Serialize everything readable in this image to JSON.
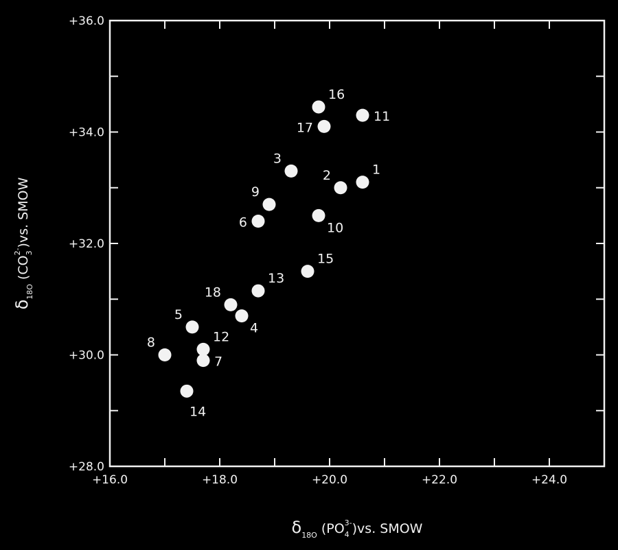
{
  "chart_data": {
    "type": "scatter",
    "title": "",
    "xlim": [
      16.0,
      25.0
    ],
    "ylim": [
      28.0,
      36.0
    ],
    "x_ticks": [
      16.0,
      17.0,
      18.0,
      19.0,
      20.0,
      21.0,
      22.0,
      23.0,
      24.0,
      25.0
    ],
    "y_ticks": [
      28.0,
      29.0,
      30.0,
      31.0,
      32.0,
      33.0,
      34.0,
      35.0,
      36.0
    ],
    "x_tick_labels": [
      "+16.0",
      "",
      "+18.0",
      "",
      "+20.0",
      "",
      "+22.0",
      "",
      "+24.0",
      ""
    ],
    "y_tick_labels": [
      "+28.0",
      "",
      "+30.0",
      "",
      "+32.0",
      "",
      "+34.0",
      "",
      "+36.0"
    ],
    "xlabel": {
      "symbol": "δ",
      "symbol_sub": "18O",
      "species": "(PO",
      "species_sub": "4",
      "species_sup": "3-",
      "suffix": ")vs. SMOW"
    },
    "ylabel": {
      "symbol": "δ",
      "symbol_sub": "18O",
      "species": "(CO",
      "species_sub": "3",
      "species_sup": "2-",
      "suffix": ")vs. SMOW"
    },
    "grid": false,
    "points": [
      {
        "label": "1",
        "x": 20.6,
        "y": 33.1,
        "label_pos": "upper-right"
      },
      {
        "label": "2",
        "x": 20.2,
        "y": 33.0,
        "label_pos": "upper-left"
      },
      {
        "label": "3",
        "x": 19.3,
        "y": 33.3,
        "label_pos": "upper-left"
      },
      {
        "label": "4",
        "x": 18.4,
        "y": 30.7,
        "label_pos": "lower-right"
      },
      {
        "label": "5",
        "x": 17.5,
        "y": 30.5,
        "label_pos": "upper-left"
      },
      {
        "label": "6",
        "x": 18.7,
        "y": 32.4,
        "label_pos": "left"
      },
      {
        "label": "7",
        "x": 17.7,
        "y": 29.9,
        "label_pos": "right"
      },
      {
        "label": "8",
        "x": 17.0,
        "y": 30.0,
        "label_pos": "upper-left"
      },
      {
        "label": "9",
        "x": 18.9,
        "y": 32.7,
        "label_pos": "upper-left"
      },
      {
        "label": "10",
        "x": 19.8,
        "y": 32.5,
        "label_pos": "lower-right"
      },
      {
        "label": "11",
        "x": 20.6,
        "y": 34.3,
        "label_pos": "right"
      },
      {
        "label": "12",
        "x": 17.7,
        "y": 30.1,
        "label_pos": "upper-right"
      },
      {
        "label": "13",
        "x": 18.7,
        "y": 31.15,
        "label_pos": "upper-right"
      },
      {
        "label": "14",
        "x": 17.4,
        "y": 29.35,
        "label_pos": "below"
      },
      {
        "label": "15",
        "x": 19.6,
        "y": 31.5,
        "label_pos": "upper-right"
      },
      {
        "label": "16",
        "x": 19.8,
        "y": 34.45,
        "label_pos": "upper-right"
      },
      {
        "label": "17",
        "x": 19.9,
        "y": 34.1,
        "label_pos": "left"
      },
      {
        "label": "18",
        "x": 18.2,
        "y": 30.9,
        "label_pos": "upper-left"
      }
    ]
  }
}
